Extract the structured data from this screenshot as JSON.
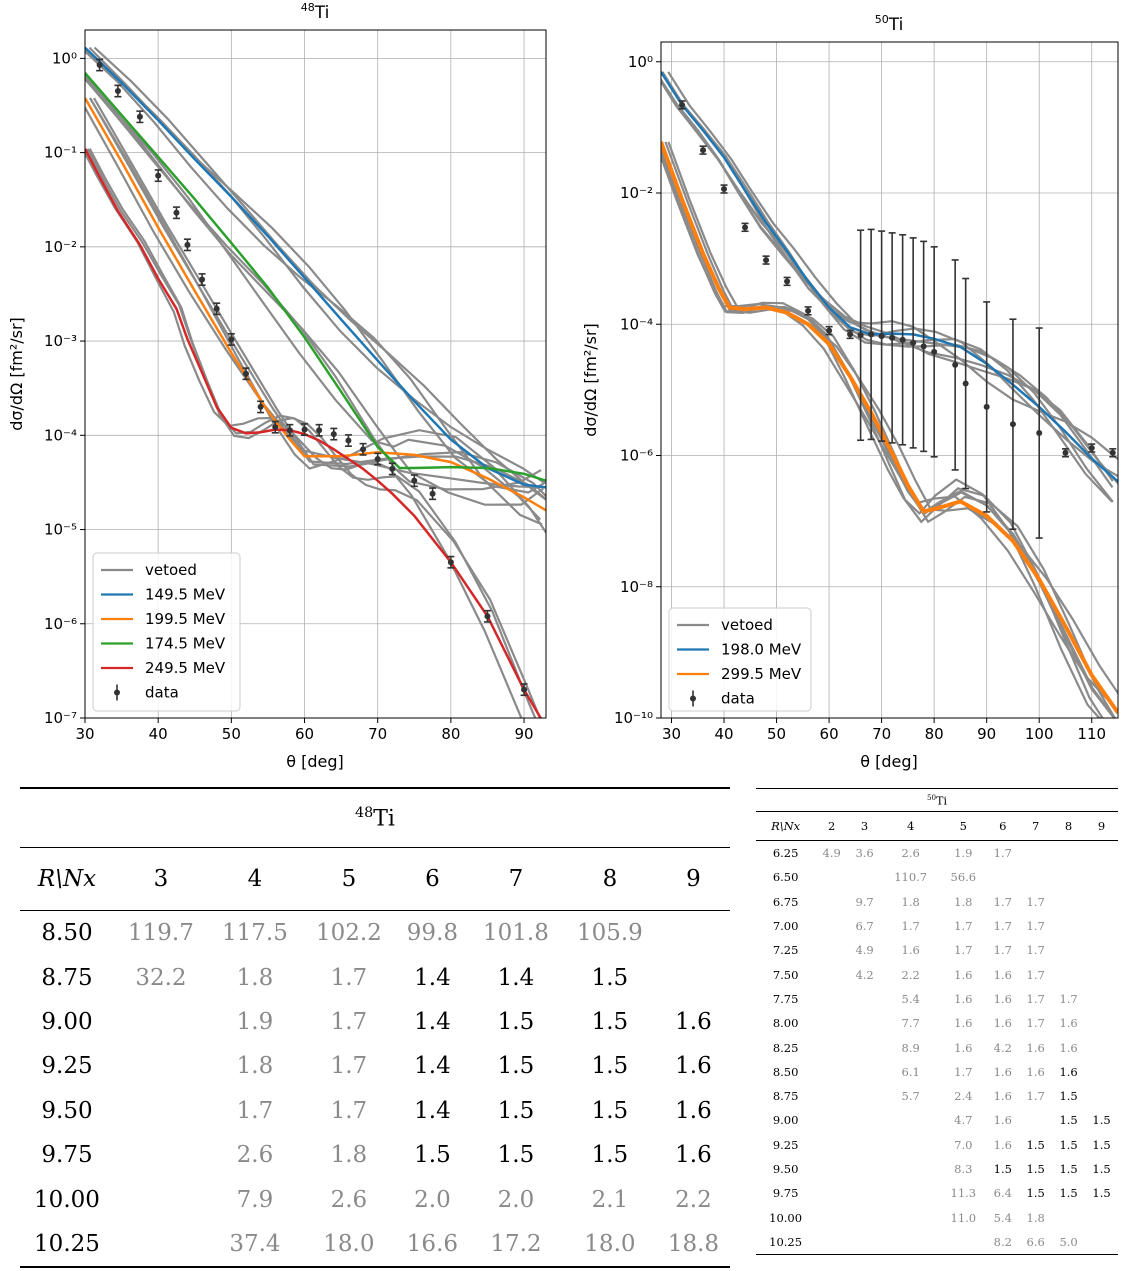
{
  "colors": {
    "vetoed": "#8a8a8a",
    "blue": "#1f77b4",
    "orange": "#ff7f0e",
    "green": "#2ca02c",
    "red": "#d62728",
    "data": "#333333"
  },
  "chart_data": [
    {
      "type": "line",
      "title_sup": "48",
      "title_main": "Ti",
      "xlabel": "θ [deg]",
      "ylabel": "dσ/dΩ [fm²/sr]",
      "xlim": [
        30,
        93
      ],
      "ylim": [
        1e-07,
        2
      ],
      "yscale": "log",
      "grid": true,
      "xticks": [
        "30",
        "40",
        "50",
        "60",
        "70",
        "80",
        "90"
      ],
      "yticks": [
        "10⁰",
        "10⁻¹",
        "10⁻²",
        "10⁻³",
        "10⁻⁴",
        "10⁻⁵",
        "10⁻⁶",
        "10⁻⁷"
      ],
      "legend_position": "lower-left",
      "legend": [
        "vetoed",
        "149.5 MeV",
        "199.5 MeV",
        "174.5 MeV",
        "249.5 MeV",
        "data"
      ],
      "series": [
        {
          "name": "149.5 MeV",
          "color_key": "blue",
          "x": [
            30,
            35,
            40,
            45,
            50,
            55,
            60,
            65,
            70,
            75,
            80,
            85,
            90,
            93
          ],
          "y": [
            1.3,
            0.55,
            0.22,
            0.085,
            0.034,
            0.013,
            0.0047,
            0.0017,
            0.00062,
            0.00023,
            9e-05,
            4.5e-05,
            3e-05,
            2.8e-05
          ]
        },
        {
          "name": "199.5 MeV",
          "color_key": "orange",
          "x": [
            30,
            35,
            40,
            45,
            50,
            55,
            58,
            60,
            65,
            70,
            75,
            80,
            85,
            90,
            93
          ],
          "y": [
            0.38,
            0.08,
            0.016,
            0.0034,
            0.00075,
            0.00018,
            9e-05,
            6e-05,
            6e-05,
            6.6e-05,
            6.2e-05,
            5.2e-05,
            3.5e-05,
            2.2e-05,
            1.6e-05
          ]
        },
        {
          "name": "174.5 MeV",
          "color_key": "green",
          "x": [
            30,
            35,
            40,
            45,
            50,
            55,
            60,
            65,
            70,
            73,
            75,
            80,
            85,
            90,
            93
          ],
          "y": [
            0.7,
            0.25,
            0.09,
            0.032,
            0.011,
            0.0037,
            0.0011,
            0.00029,
            7.5e-05,
            4.5e-05,
            4.5e-05,
            4.6e-05,
            4.5e-05,
            3.9e-05,
            3.3e-05
          ]
        },
        {
          "name": "249.5 MeV",
          "color_key": "red",
          "x": [
            30,
            32,
            34.5,
            37.5,
            40,
            42.5,
            44,
            46,
            48,
            50,
            52,
            54,
            56,
            58,
            60,
            62,
            64,
            66,
            68,
            70,
            72,
            75,
            80,
            85,
            90,
            93
          ],
          "y": [
            0.11,
            0.055,
            0.024,
            0.0105,
            0.0046,
            0.0022,
            0.00105,
            0.00046,
            0.0002,
            0.00012,
            0.000105,
            0.000108,
            0.000115,
            0.000113,
            0.000103,
            8.8e-05,
            7.1e-05,
            5.6e-05,
            4.4e-05,
            3.3e-05,
            2.4e-05,
            1.4e-05,
            4.5e-06,
            1.2e-06,
            2e-07,
            8e-08
          ]
        },
        {
          "name": "data",
          "color_key": "data",
          "x": [
            32,
            34.5,
            37.5,
            40,
            42.5,
            44,
            46,
            48,
            50,
            52,
            54,
            56,
            58,
            60,
            62,
            64,
            66,
            68,
            70,
            72,
            75,
            77.5,
            80,
            85,
            90
          ],
          "y": [
            0.85,
            0.45,
            0.24,
            0.057,
            0.023,
            0.0105,
            0.0045,
            0.0022,
            0.00104,
            0.00045,
            0.0002,
            0.000122,
            0.000113,
            0.000115,
            0.000113,
            0.000103,
            8.8e-05,
            7.1e-05,
            5.6e-05,
            4.4e-05,
            3.3e-05,
            2.4e-05,
            4.5e-06,
            1.2e-06,
            2e-07
          ]
        }
      ]
    },
    {
      "type": "line",
      "title_sup": "50",
      "title_main": "Ti",
      "xlabel": "θ [deg]",
      "ylabel": "dσ/dΩ [fm²/sr]",
      "xlim": [
        28,
        115
      ],
      "ylim": [
        1e-10,
        2
      ],
      "yscale": "log",
      "grid": true,
      "xticks": [
        "30",
        "40",
        "50",
        "60",
        "70",
        "80",
        "90",
        "100",
        "110"
      ],
      "yticks": [
        "10⁰",
        "10⁻²",
        "10⁻⁴",
        "10⁻⁶",
        "10⁻⁸",
        "10⁻¹⁰"
      ],
      "legend_position": "lower-left",
      "legend": [
        "vetoed",
        "198.0 MeV",
        "299.5 MeV",
        "data"
      ],
      "series": [
        {
          "name": "198.0 MeV",
          "color_key": "blue",
          "x": [
            28,
            32,
            36,
            40,
            44,
            48,
            52,
            56,
            60,
            64,
            68,
            72,
            76,
            80,
            85,
            90,
            95,
            100,
            105,
            110,
            115
          ],
          "y": [
            0.7,
            0.22,
            0.09,
            0.035,
            0.011,
            0.0035,
            0.0013,
            0.00045,
            0.00018,
            9e-05,
            7e-05,
            7.2e-05,
            7e-05,
            6e-05,
            4.5e-05,
            2.5e-05,
            1.2e-05,
            5.5e-06,
            2.3e-06,
            9e-07,
            4e-07
          ]
        },
        {
          "name": "299.5 MeV",
          "color_key": "orange",
          "x": [
            28,
            32,
            36,
            39,
            41,
            44,
            48,
            52,
            56,
            60,
            64,
            68,
            72,
            75,
            78,
            81,
            85,
            90,
            95,
            100,
            105,
            110,
            115
          ],
          "y": [
            0.06,
            0.008,
            0.0012,
            0.00035,
            0.00018,
            0.00017,
            0.00018,
            0.00015,
            0.0001,
            5e-05,
            1.6e-05,
            4.5e-06,
            1.1e-06,
            3.5e-07,
            1.4e-07,
            1.6e-07,
            2e-07,
            1.2e-07,
            5e-08,
            1.3e-08,
            2.5e-09,
            4.5e-10,
            1.2e-10
          ]
        },
        {
          "name": "data",
          "color_key": "data",
          "x": [
            32,
            36,
            40,
            44,
            48,
            52,
            56,
            60,
            64,
            66,
            68,
            70,
            72,
            74,
            76,
            78,
            80,
            84,
            86,
            90,
            95,
            100,
            105,
            110,
            114
          ],
          "y": [
            0.22,
            0.045,
            0.0115,
            0.003,
            0.00095,
            0.00045,
            0.00016,
            8e-05,
            7e-05,
            6.8e-05,
            7e-05,
            6.6e-05,
            6.2e-05,
            5.8e-05,
            5.2e-05,
            4.6e-05,
            3.8e-05,
            2.4e-05,
            1.25e-05,
            5.5e-06,
            3e-06,
            2.2e-06,
            1.1e-06,
            1.3e-06,
            1.1e-06
          ]
        }
      ]
    }
  ],
  "table48": {
    "caption_sup": "48",
    "caption_main": "Ti",
    "corner": "R\\Nx",
    "cols": [
      "3",
      "4",
      "5",
      "6",
      "7",
      "8",
      "9"
    ],
    "rows": [
      {
        "r": "8.50",
        "v": [
          "119.7",
          "117.5",
          "102.2",
          "99.8",
          "101.8",
          "105.9",
          ""
        ],
        "b": [
          0,
          0,
          0,
          0,
          0,
          0,
          0
        ]
      },
      {
        "r": "8.75",
        "v": [
          "32.2",
          "1.8",
          "1.7",
          "1.4",
          "1.4",
          "1.5",
          ""
        ],
        "b": [
          0,
          0,
          0,
          1,
          1,
          1,
          0
        ]
      },
      {
        "r": "9.00",
        "v": [
          "",
          "1.9",
          "1.7",
          "1.4",
          "1.5",
          "1.5",
          "1.6"
        ],
        "b": [
          0,
          0,
          0,
          1,
          1,
          1,
          1
        ]
      },
      {
        "r": "9.25",
        "v": [
          "",
          "1.8",
          "1.7",
          "1.4",
          "1.5",
          "1.5",
          "1.6"
        ],
        "b": [
          0,
          0,
          0,
          1,
          1,
          1,
          1
        ]
      },
      {
        "r": "9.50",
        "v": [
          "",
          "1.7",
          "1.7",
          "1.4",
          "1.5",
          "1.5",
          "1.6"
        ],
        "b": [
          0,
          0,
          0,
          1,
          1,
          1,
          1
        ]
      },
      {
        "r": "9.75",
        "v": [
          "",
          "2.6",
          "1.8",
          "1.5",
          "1.5",
          "1.5",
          "1.6"
        ],
        "b": [
          0,
          0,
          0,
          1,
          1,
          1,
          1
        ]
      },
      {
        "r": "10.00",
        "v": [
          "",
          "7.9",
          "2.6",
          "2.0",
          "2.0",
          "2.1",
          "2.2"
        ],
        "b": [
          0,
          0,
          0,
          0,
          0,
          0,
          0
        ]
      },
      {
        "r": "10.25",
        "v": [
          "",
          "37.4",
          "18.0",
          "16.6",
          "17.2",
          "18.0",
          "18.8"
        ],
        "b": [
          0,
          0,
          0,
          0,
          0,
          0,
          0
        ]
      }
    ]
  },
  "table50": {
    "caption_sup": "50",
    "caption_main": "Ti",
    "corner": "R\\Nx",
    "cols": [
      "2",
      "3",
      "4",
      "5",
      "6",
      "7",
      "8",
      "9"
    ],
    "rows": [
      {
        "r": "6.25",
        "v": [
          "4.9",
          "3.6",
          "2.6",
          "1.9",
          "1.7",
          "",
          "",
          ""
        ],
        "b": [
          0,
          0,
          0,
          0,
          0,
          0,
          0,
          0
        ]
      },
      {
        "r": "6.50",
        "v": [
          "",
          "",
          "110.7",
          "56.6",
          "",
          "",
          "",
          ""
        ],
        "b": [
          0,
          0,
          0,
          0,
          0,
          0,
          0,
          0
        ]
      },
      {
        "r": "6.75",
        "v": [
          "",
          "9.7",
          "1.8",
          "1.8",
          "1.7",
          "1.7",
          "",
          ""
        ],
        "b": [
          0,
          0,
          0,
          0,
          0,
          0,
          0,
          0
        ]
      },
      {
        "r": "7.00",
        "v": [
          "",
          "6.7",
          "1.7",
          "1.7",
          "1.7",
          "1.7",
          "",
          ""
        ],
        "b": [
          0,
          0,
          0,
          0,
          0,
          0,
          0,
          0
        ]
      },
      {
        "r": "7.25",
        "v": [
          "",
          "4.9",
          "1.6",
          "1.7",
          "1.7",
          "1.7",
          "",
          ""
        ],
        "b": [
          0,
          0,
          0,
          0,
          0,
          0,
          0,
          0
        ]
      },
      {
        "r": "7.50",
        "v": [
          "",
          "4.2",
          "2.2",
          "1.6",
          "1.6",
          "1.7",
          "",
          ""
        ],
        "b": [
          0,
          0,
          0,
          0,
          0,
          0,
          0,
          0
        ]
      },
      {
        "r": "7.75",
        "v": [
          "",
          "",
          "5.4",
          "1.6",
          "1.6",
          "1.7",
          "1.7",
          ""
        ],
        "b": [
          0,
          0,
          0,
          0,
          0,
          0,
          0,
          0
        ]
      },
      {
        "r": "8.00",
        "v": [
          "",
          "",
          "7.7",
          "1.6",
          "1.6",
          "1.7",
          "1.6",
          ""
        ],
        "b": [
          0,
          0,
          0,
          0,
          0,
          0,
          0,
          0
        ]
      },
      {
        "r": "8.25",
        "v": [
          "",
          "",
          "8.9",
          "1.6",
          "4.2",
          "1.6",
          "1.6",
          ""
        ],
        "b": [
          0,
          0,
          0,
          0,
          0,
          0,
          0,
          0
        ]
      },
      {
        "r": "8.50",
        "v": [
          "",
          "",
          "6.1",
          "1.7",
          "1.6",
          "1.6",
          "1.6",
          ""
        ],
        "b": [
          0,
          0,
          0,
          0,
          0,
          0,
          1,
          0
        ]
      },
      {
        "r": "8.75",
        "v": [
          "",
          "",
          "5.7",
          "2.4",
          "1.6",
          "1.7",
          "1.5",
          ""
        ],
        "b": [
          0,
          0,
          0,
          0,
          0,
          0,
          1,
          0
        ]
      },
      {
        "r": "9.00",
        "v": [
          "",
          "",
          "",
          "4.7",
          "1.6",
          "",
          "1.5",
          "1.5"
        ],
        "b": [
          0,
          0,
          0,
          0,
          0,
          0,
          1,
          1
        ]
      },
      {
        "r": "9.25",
        "v": [
          "",
          "",
          "",
          "7.0",
          "1.6",
          "1.5",
          "1.5",
          "1.5"
        ],
        "b": [
          0,
          0,
          0,
          0,
          0,
          1,
          1,
          1
        ]
      },
      {
        "r": "9.50",
        "v": [
          "",
          "",
          "",
          "8.3",
          "1.5",
          "1.5",
          "1.5",
          "1.5"
        ],
        "b": [
          0,
          0,
          0,
          0,
          1,
          1,
          1,
          1
        ]
      },
      {
        "r": "9.75",
        "v": [
          "",
          "",
          "",
          "11.3",
          "6.4",
          "1.5",
          "1.5",
          "1.5"
        ],
        "b": [
          0,
          0,
          0,
          0,
          0,
          1,
          1,
          1
        ]
      },
      {
        "r": "10.00",
        "v": [
          "",
          "",
          "",
          "11.0",
          "5.4",
          "1.8",
          "",
          ""
        ],
        "b": [
          0,
          0,
          0,
          0,
          0,
          0,
          0,
          0
        ]
      },
      {
        "r": "10.25",
        "v": [
          "",
          "",
          "",
          "",
          "8.2",
          "6.6",
          "5.0",
          ""
        ],
        "b": [
          0,
          0,
          0,
          0,
          0,
          0,
          0,
          0
        ]
      }
    ]
  }
}
